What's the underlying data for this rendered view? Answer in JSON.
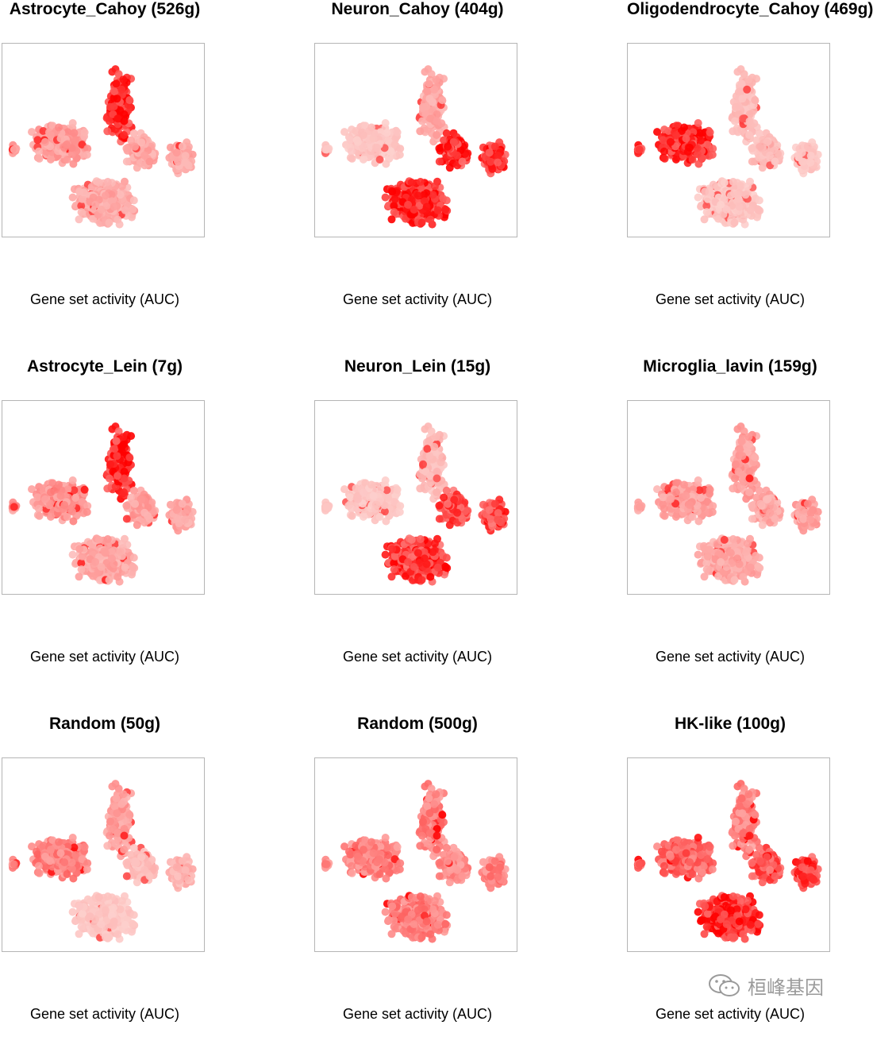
{
  "chart_data": [
    {
      "type": "scatter",
      "title": "Astrocyte_Cahoy (526g)",
      "xlabel": "Gene set activity (AUC)",
      "color_low": "#fde3e0",
      "color_high": "#ff0000",
      "cluster_activity": {
        "top": 0.95,
        "left": 0.35,
        "mid_right": 0.3,
        "right": 0.3,
        "bottom": 0.3
      }
    },
    {
      "type": "scatter",
      "title": "Neuron_Cahoy (404g)",
      "xlabel": "Gene set activity (AUC)",
      "color_low": "#fde3e0",
      "color_high": "#ff0000",
      "cluster_activity": {
        "top": 0.3,
        "left": 0.15,
        "mid_right": 0.9,
        "right": 0.9,
        "bottom": 0.95
      }
    },
    {
      "type": "scatter",
      "title": "Oligodendrocyte_Cahoy (469g)",
      "xlabel": "Gene set activity (AUC)",
      "color_low": "#fde3e0",
      "color_high": "#ff0000",
      "cluster_activity": {
        "top": 0.2,
        "left": 0.95,
        "mid_right": 0.2,
        "right": 0.15,
        "bottom": 0.15
      }
    },
    {
      "type": "scatter",
      "title": "Astrocyte_Lein (7g)",
      "xlabel": "Gene set activity (AUC)",
      "color_low": "#fde3e0",
      "color_high": "#ff0000",
      "cluster_activity": {
        "top": 0.95,
        "left": 0.4,
        "mid_right": 0.35,
        "right": 0.3,
        "bottom": 0.3
      }
    },
    {
      "type": "scatter",
      "title": "Neuron_Lein (15g)",
      "xlabel": "Gene set activity (AUC)",
      "color_low": "#fde3e0",
      "color_high": "#ff0000",
      "cluster_activity": {
        "top": 0.2,
        "left": 0.15,
        "mid_right": 0.8,
        "right": 0.8,
        "bottom": 0.85
      }
    },
    {
      "type": "scatter",
      "title": "Microglia_lavin (159g)",
      "xlabel": "Gene set activity (AUC)",
      "color_low": "#fde3e0",
      "color_high": "#ff0000",
      "cluster_activity": {
        "top": 0.35,
        "left": 0.35,
        "mid_right": 0.3,
        "right": 0.35,
        "bottom": 0.3
      }
    },
    {
      "type": "scatter",
      "title": "Random (50g)",
      "xlabel": "Gene set activity (AUC)",
      "color_low": "#fde3e0",
      "color_high": "#ff0000",
      "cluster_activity": {
        "top": 0.35,
        "left": 0.5,
        "mid_right": 0.2,
        "right": 0.25,
        "bottom": 0.15
      }
    },
    {
      "type": "scatter",
      "title": "Random (500g)",
      "xlabel": "Gene set activity (AUC)",
      "color_low": "#fde3e0",
      "color_high": "#ff0000",
      "cluster_activity": {
        "top": 0.5,
        "left": 0.5,
        "mid_right": 0.45,
        "right": 0.5,
        "bottom": 0.5
      }
    },
    {
      "type": "scatter",
      "title": "HK-like (100g)",
      "xlabel": "Gene set activity (AUC)",
      "color_low": "#fde3e0",
      "color_high": "#ff0000",
      "cluster_activity": {
        "top": 0.5,
        "left": 0.65,
        "mid_right": 0.75,
        "right": 0.8,
        "bottom": 0.95
      }
    }
  ],
  "watermark": {
    "text": "桓峰基因",
    "icon": "wechat-icon",
    "color": "#9a9a9a"
  }
}
